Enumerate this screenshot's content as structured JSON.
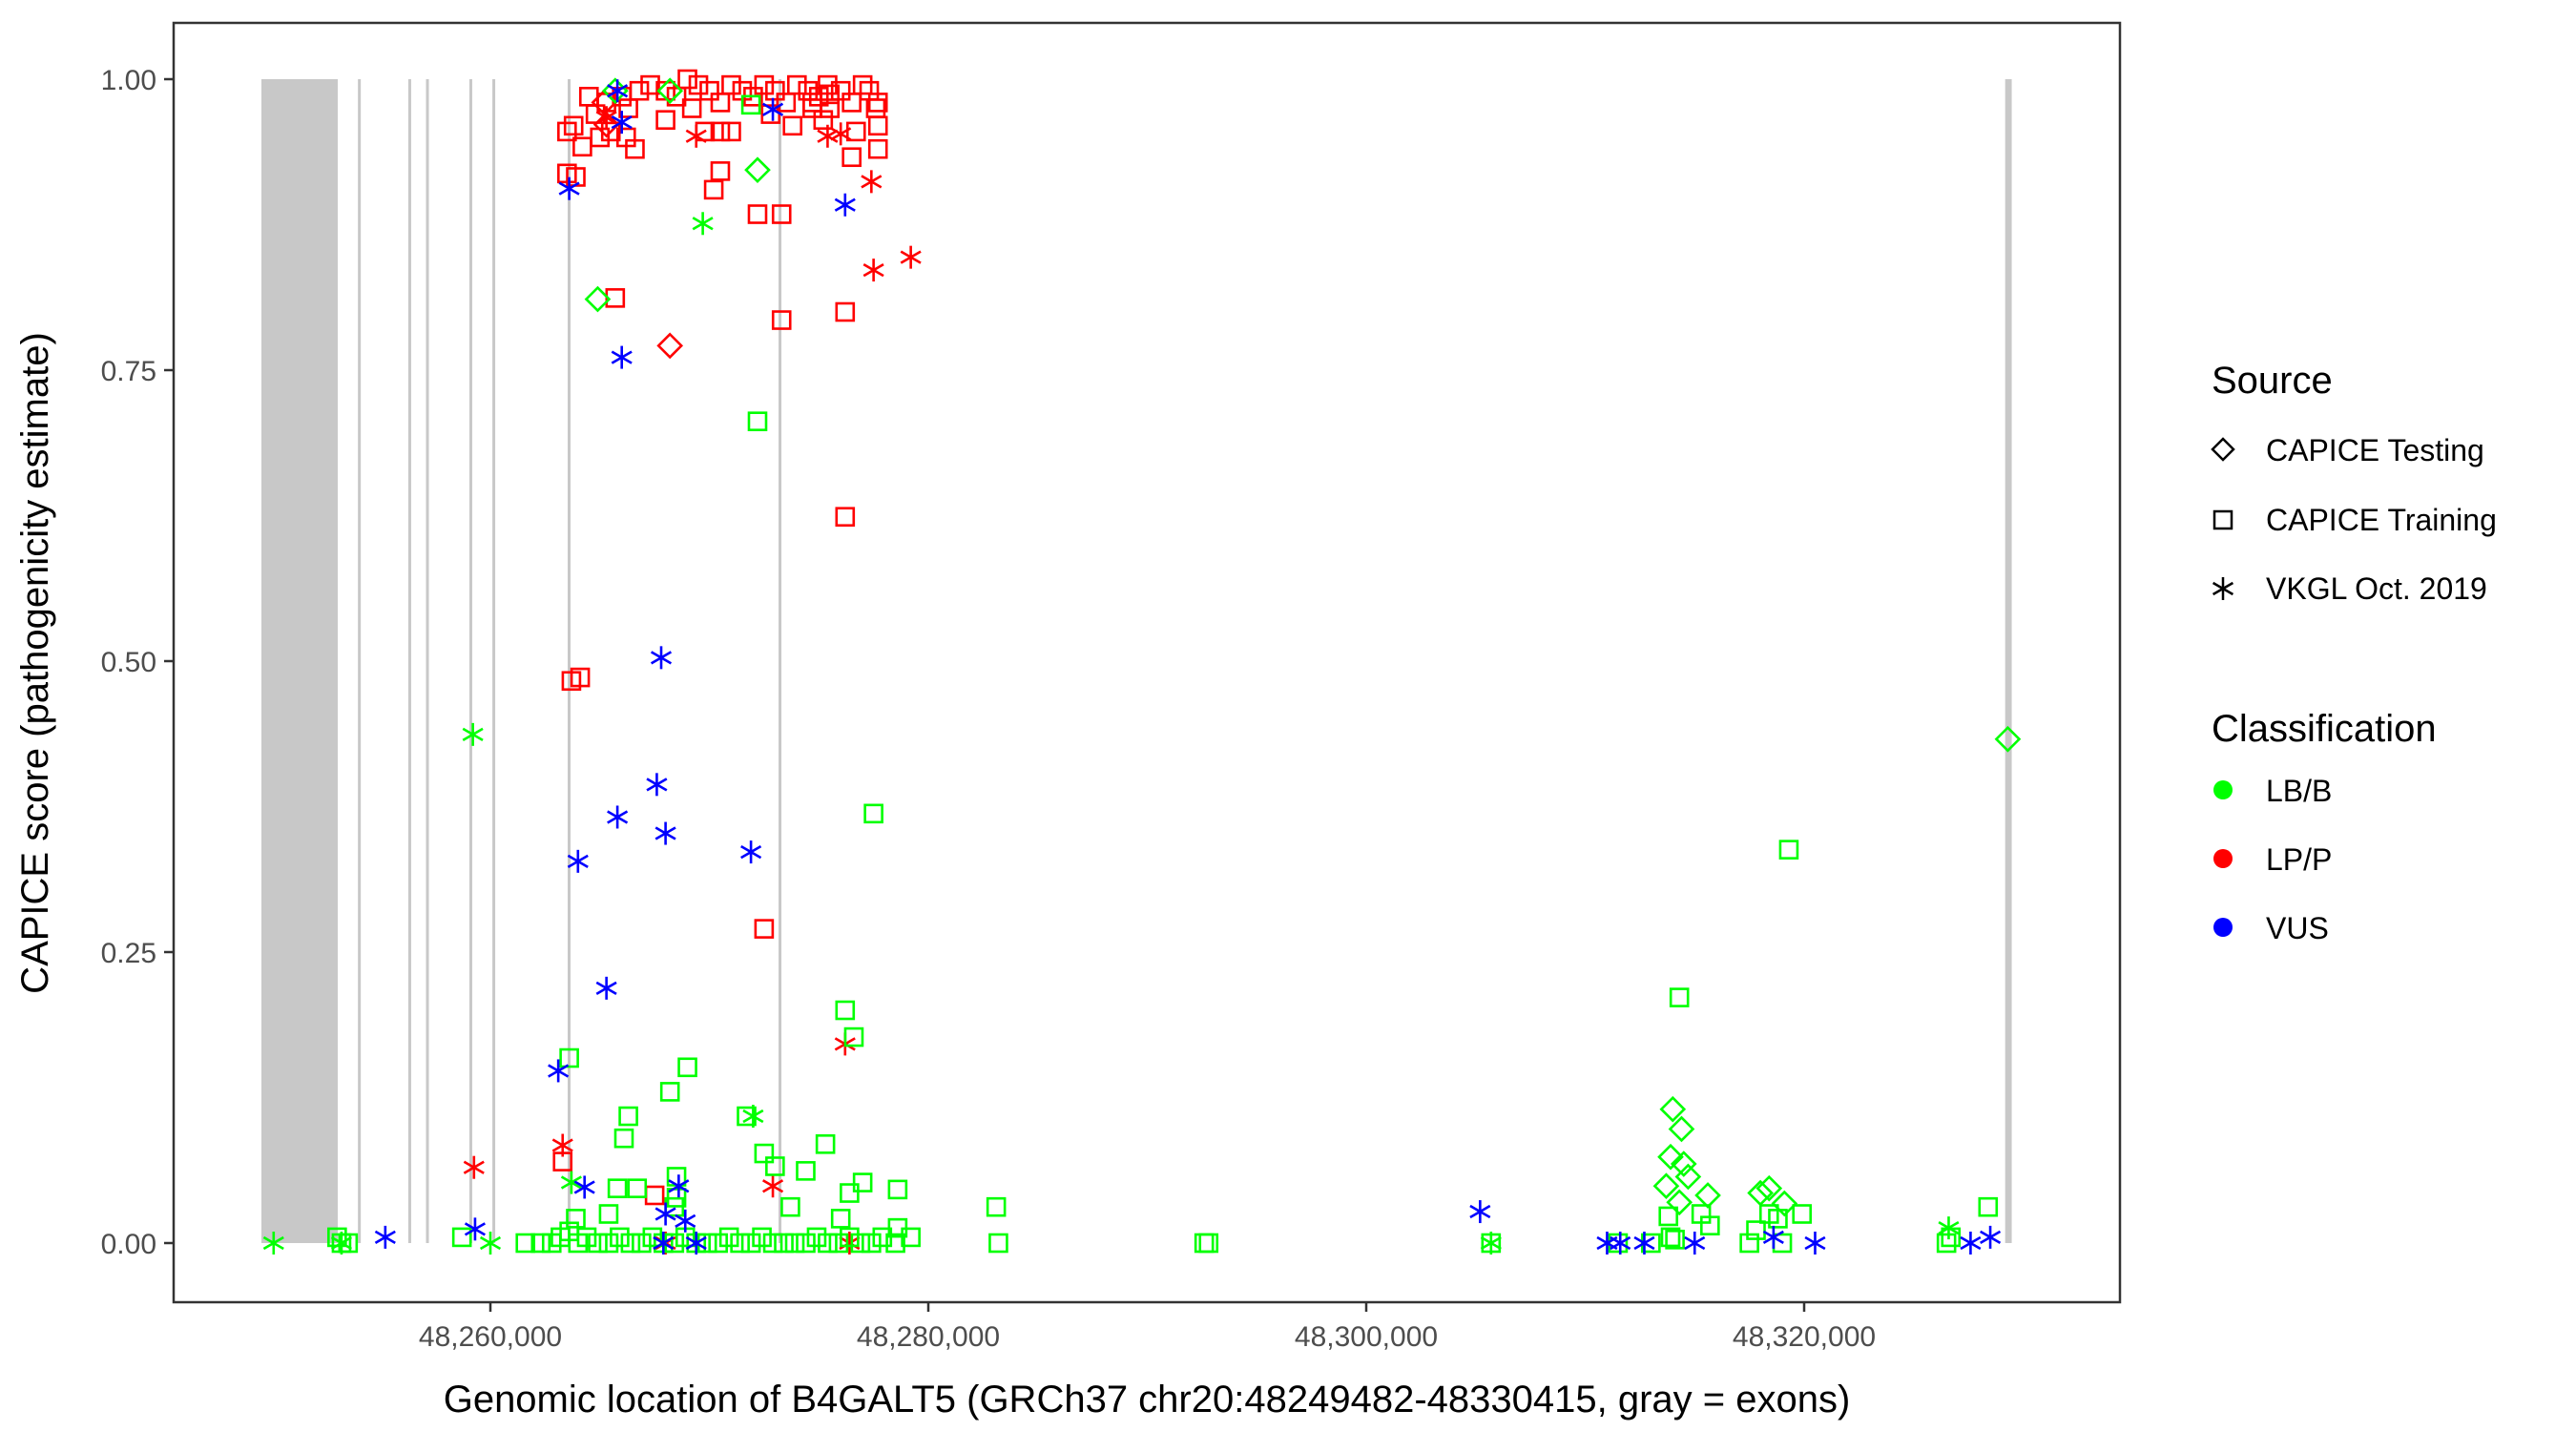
{
  "chart_data": {
    "type": "scatter",
    "title": "",
    "xlabel": "Genomic location of B4GALT5 (GRCh37 chr20:48249482-48330415, gray = exons)",
    "ylabel": "CAPICE score (pathogenicity estimate)",
    "xlim": [
      48245534,
      48334420
    ],
    "ylim": [
      -0.05,
      1.04
    ],
    "grid": false,
    "x_ticks": [
      {
        "value": 48260000,
        "label": "48,260,000"
      },
      {
        "value": 48280000,
        "label": "48,280,000"
      },
      {
        "value": 48300000,
        "label": "48,300,000"
      },
      {
        "value": 48320000,
        "label": "48,320,000"
      }
    ],
    "y_ticks": [
      {
        "value": 0,
        "label": "0.00"
      },
      {
        "value": 0.25,
        "label": "0.25"
      },
      {
        "value": 0.5,
        "label": "0.50"
      },
      {
        "value": 0.75,
        "label": "0.75"
      },
      {
        "value": 1,
        "label": "1.00"
      }
    ],
    "exon_color": "#c8c8c8",
    "exons": [
      [
        48249543,
        48253029
      ],
      [
        48253950,
        48254030
      ],
      [
        48256250,
        48256340
      ],
      [
        48257060,
        48257190
      ],
      [
        48259040,
        48259130
      ],
      [
        48260090,
        48260170
      ],
      [
        48263530,
        48263610
      ],
      [
        48273160,
        48273240
      ],
      [
        48329180,
        48329480
      ]
    ],
    "legend": {
      "placement": "right",
      "source": {
        "title": "Source",
        "items": [
          {
            "label": "CAPICE Testing",
            "shape": "diamond"
          },
          {
            "label": "CAPICE Training",
            "shape": "square"
          },
          {
            "label": "VKGL Oct. 2019",
            "shape": "asterisk"
          }
        ]
      },
      "classification": {
        "title": "Classification",
        "items": [
          {
            "label": "LB/B",
            "color": "#00ff00"
          },
          {
            "label": "LP/P",
            "color": "#ff0000"
          },
          {
            "label": "VUS",
            "color": "#0000ff"
          }
        ]
      }
    },
    "series": [
      {
        "name": "LP/P CAPICE Training",
        "shape": "square",
        "color": "#ff0000",
        "points": [
          [
            48263500,
            0.955
          ],
          [
            48263800,
            0.96
          ],
          [
            48264200,
            0.942
          ],
          [
            48265000,
            0.95
          ],
          [
            48265500,
            0.955
          ],
          [
            48266200,
            0.95
          ],
          [
            48266600,
            0.94
          ],
          [
            48263500,
            0.919
          ],
          [
            48263900,
            0.916
          ],
          [
            48264800,
            0.97
          ],
          [
            48265300,
            0.98
          ],
          [
            48266000,
            0.985
          ],
          [
            48266800,
            0.99
          ],
          [
            48267300,
            0.995
          ],
          [
            48268000,
            0.99
          ],
          [
            48268500,
            0.985
          ],
          [
            48269000,
            1.0
          ],
          [
            48269500,
            0.995
          ],
          [
            48270000,
            0.99
          ],
          [
            48270500,
            0.98
          ],
          [
            48271000,
            0.995
          ],
          [
            48271500,
            0.99
          ],
          [
            48272000,
            0.985
          ],
          [
            48272500,
            0.995
          ],
          [
            48273000,
            0.99
          ],
          [
            48273500,
            0.98
          ],
          [
            48274000,
            0.995
          ],
          [
            48274500,
            0.99
          ],
          [
            48275000,
            0.985
          ],
          [
            48275500,
            0.975
          ],
          [
            48276000,
            0.99
          ],
          [
            48276500,
            0.98
          ],
          [
            48277000,
            0.995
          ],
          [
            48277300,
            0.99
          ],
          [
            48277600,
            0.975
          ],
          [
            48269800,
            0.955
          ],
          [
            48270500,
            0.955
          ],
          [
            48271000,
            0.955
          ],
          [
            48270500,
            0.921
          ],
          [
            48270200,
            0.905
          ],
          [
            48272200,
            0.884
          ],
          [
            48273300,
            0.884
          ],
          [
            48274700,
            0.98
          ],
          [
            48274700,
            0.975
          ],
          [
            48275500,
            0.987
          ],
          [
            48275400,
            0.995
          ],
          [
            48276500,
            0.933
          ],
          [
            48276700,
            0.955
          ],
          [
            48277700,
            0.98
          ],
          [
            48277700,
            0.96
          ],
          [
            48277700,
            0.94
          ],
          [
            48265700,
            0.812
          ],
          [
            48273300,
            0.793
          ],
          [
            48276200,
            0.8
          ],
          [
            48276200,
            0.624
          ],
          [
            48263700,
            0.483
          ],
          [
            48264100,
            0.486
          ],
          [
            48272500,
            0.27
          ],
          [
            48263300,
            0.07
          ],
          [
            48267500,
            0.041
          ],
          [
            48268000,
            0.965
          ],
          [
            48269200,
            0.975
          ],
          [
            48272800,
            0.97
          ],
          [
            48273800,
            0.96
          ],
          [
            48266300,
            0.975
          ],
          [
            48275200,
            0.965
          ],
          [
            48264500,
            0.985
          ]
        ]
      },
      {
        "name": "LP/P CAPICE Testing",
        "shape": "diamond",
        "color": "#ff0000",
        "points": [
          [
            48268200,
            0.771
          ],
          [
            48265300,
            0.961
          ],
          [
            48265200,
            0.98
          ]
        ]
      },
      {
        "name": "LP/P VKGL",
        "shape": "asterisk",
        "color": "#ff0000",
        "points": [
          [
            48259250,
            0.065
          ],
          [
            48263300,
            0.084
          ],
          [
            48268000,
            0.0
          ],
          [
            48269400,
            0.951
          ],
          [
            48265300,
            0.967
          ],
          [
            48275400,
            0.951
          ],
          [
            48276000,
            0.953
          ],
          [
            48277400,
            0.912
          ],
          [
            48277500,
            0.836
          ],
          [
            48279200,
            0.847
          ],
          [
            48272900,
            0.049
          ],
          [
            48276200,
            0.171
          ],
          [
            48276400,
            0.0
          ]
        ]
      },
      {
        "name": "LB/B CAPICE Training",
        "shape": "square",
        "color": "#00ff00",
        "points": [
          [
            48253000,
            0.005
          ],
          [
            48253200,
            0.0
          ],
          [
            48253500,
            0.0
          ],
          [
            48258700,
            0.005
          ],
          [
            48261600,
            0.0
          ],
          [
            48262300,
            0.0
          ],
          [
            48262800,
            0.0
          ],
          [
            48263200,
            0.005
          ],
          [
            48263600,
            0.01
          ],
          [
            48264000,
            0.0
          ],
          [
            48264400,
            0.005
          ],
          [
            48264900,
            0.0
          ],
          [
            48265400,
            0.0
          ],
          [
            48265900,
            0.005
          ],
          [
            48266400,
            0.0
          ],
          [
            48266900,
            0.0
          ],
          [
            48267400,
            0.005
          ],
          [
            48267900,
            0.0
          ],
          [
            48268400,
            0.0
          ],
          [
            48268900,
            0.005
          ],
          [
            48269400,
            0.0
          ],
          [
            48269900,
            0.0
          ],
          [
            48270400,
            0.0
          ],
          [
            48270900,
            0.005
          ],
          [
            48271400,
            0.0
          ],
          [
            48271900,
            0.0
          ],
          [
            48272400,
            0.005
          ],
          [
            48272900,
            0.0
          ],
          [
            48273400,
            0.0
          ],
          [
            48273900,
            0.0
          ],
          [
            48274400,
            0.0
          ],
          [
            48274900,
            0.005
          ],
          [
            48275400,
            0.0
          ],
          [
            48275900,
            0.0
          ],
          [
            48276400,
            0.005
          ],
          [
            48276900,
            0.0
          ],
          [
            48277400,
            0.0
          ],
          [
            48277900,
            0.005
          ],
          [
            48278500,
            0.0
          ],
          [
            48279200,
            0.005
          ],
          [
            48266300,
            0.109
          ],
          [
            48266100,
            0.09
          ],
          [
            48266700,
            0.047
          ],
          [
            48265800,
            0.047
          ],
          [
            48268500,
            0.057
          ],
          [
            48268500,
            0.039
          ],
          [
            48263900,
            0.021
          ],
          [
            48265400,
            0.025
          ],
          [
            48268400,
            0.031
          ],
          [
            48268200,
            0.13
          ],
          [
            48269000,
            0.151
          ],
          [
            48272500,
            0.077
          ],
          [
            48273000,
            0.066
          ],
          [
            48274400,
            0.062
          ],
          [
            48273700,
            0.031
          ],
          [
            48275300,
            0.085
          ],
          [
            48276400,
            0.043
          ],
          [
            48277000,
            0.052
          ],
          [
            48278600,
            0.046
          ],
          [
            48276000,
            0.021
          ],
          [
            48278600,
            0.013
          ],
          [
            48272200,
            0.706
          ],
          [
            48277500,
            0.369
          ],
          [
            48276200,
            0.2
          ],
          [
            48276600,
            0.177
          ],
          [
            48263600,
            0.159
          ],
          [
            48271700,
            0.109
          ],
          [
            48271900,
            0.978
          ],
          [
            48283100,
            0.031
          ],
          [
            48283200,
            0.0
          ],
          [
            48292600,
            0.0
          ],
          [
            48292800,
            0.0
          ],
          [
            48305700,
            0.0
          ],
          [
            48311500,
            0.0
          ],
          [
            48314300,
            0.211
          ],
          [
            48313800,
            0.023
          ],
          [
            48315300,
            0.025
          ],
          [
            48315700,
            0.015
          ],
          [
            48318400,
            0.025
          ],
          [
            48319900,
            0.025
          ],
          [
            48317800,
            0.011
          ],
          [
            48314100,
            0.003
          ],
          [
            48313900,
            0.005
          ],
          [
            48317500,
            0.0
          ],
          [
            48319000,
            0.0
          ],
          [
            48318800,
            0.021
          ],
          [
            48319300,
            0.338
          ],
          [
            48326500,
            0.0
          ],
          [
            48326700,
            0.005
          ],
          [
            48328400,
            0.031
          ],
          [
            48313000,
            0.0
          ]
        ]
      },
      {
        "name": "LB/B CAPICE Testing",
        "shape": "diamond",
        "color": "#00ff00",
        "points": [
          [
            48264900,
            0.811
          ],
          [
            48272200,
            0.922
          ],
          [
            48265700,
            0.99
          ],
          [
            48268200,
            0.99
          ],
          [
            48314000,
            0.115
          ],
          [
            48314400,
            0.098
          ],
          [
            48313900,
            0.074
          ],
          [
            48314500,
            0.068
          ],
          [
            48314700,
            0.057
          ],
          [
            48313700,
            0.049
          ],
          [
            48314300,
            0.035
          ],
          [
            48315600,
            0.041
          ],
          [
            48318000,
            0.043
          ],
          [
            48318400,
            0.047
          ],
          [
            48319100,
            0.034
          ],
          [
            48329300,
            0.433
          ]
        ]
      },
      {
        "name": "LB/B VKGL",
        "shape": "asterisk",
        "color": "#00ff00",
        "points": [
          [
            48250100,
            0.0
          ],
          [
            48253200,
            0.0
          ],
          [
            48259200,
            0.437
          ],
          [
            48260000,
            0.0
          ],
          [
            48263700,
            0.052
          ],
          [
            48269700,
            0.876
          ],
          [
            48272000,
            0.109
          ],
          [
            48305700,
            0.0
          ],
          [
            48326600,
            0.013
          ]
        ]
      },
      {
        "name": "VUS VKGL",
        "shape": "asterisk",
        "color": "#0000ff",
        "points": [
          [
            48255200,
            0.005
          ],
          [
            48259300,
            0.012
          ],
          [
            48263100,
            0.148
          ],
          [
            48263600,
            0.906
          ],
          [
            48264000,
            0.328
          ],
          [
            48264300,
            0.048
          ],
          [
            48265300,
            0.219
          ],
          [
            48265800,
            0.366
          ],
          [
            48265800,
            0.99
          ],
          [
            48266000,
            0.963
          ],
          [
            48266000,
            0.761
          ],
          [
            48267600,
            0.394
          ],
          [
            48267800,
            0.503
          ],
          [
            48268000,
            0.352
          ],
          [
            48268000,
            0.025
          ],
          [
            48267900,
            0.0
          ],
          [
            48268600,
            0.049
          ],
          [
            48268900,
            0.019
          ],
          [
            48269400,
            0.0
          ],
          [
            48271900,
            0.336
          ],
          [
            48272900,
            0.974
          ],
          [
            48276200,
            0.892
          ],
          [
            48305200,
            0.027
          ],
          [
            48311000,
            0.0
          ],
          [
            48311600,
            0.0
          ],
          [
            48312700,
            0.0
          ],
          [
            48315000,
            0.0
          ],
          [
            48318600,
            0.005
          ],
          [
            48320500,
            0.0
          ],
          [
            48327600,
            0.0
          ],
          [
            48328500,
            0.005
          ]
        ]
      }
    ]
  }
}
